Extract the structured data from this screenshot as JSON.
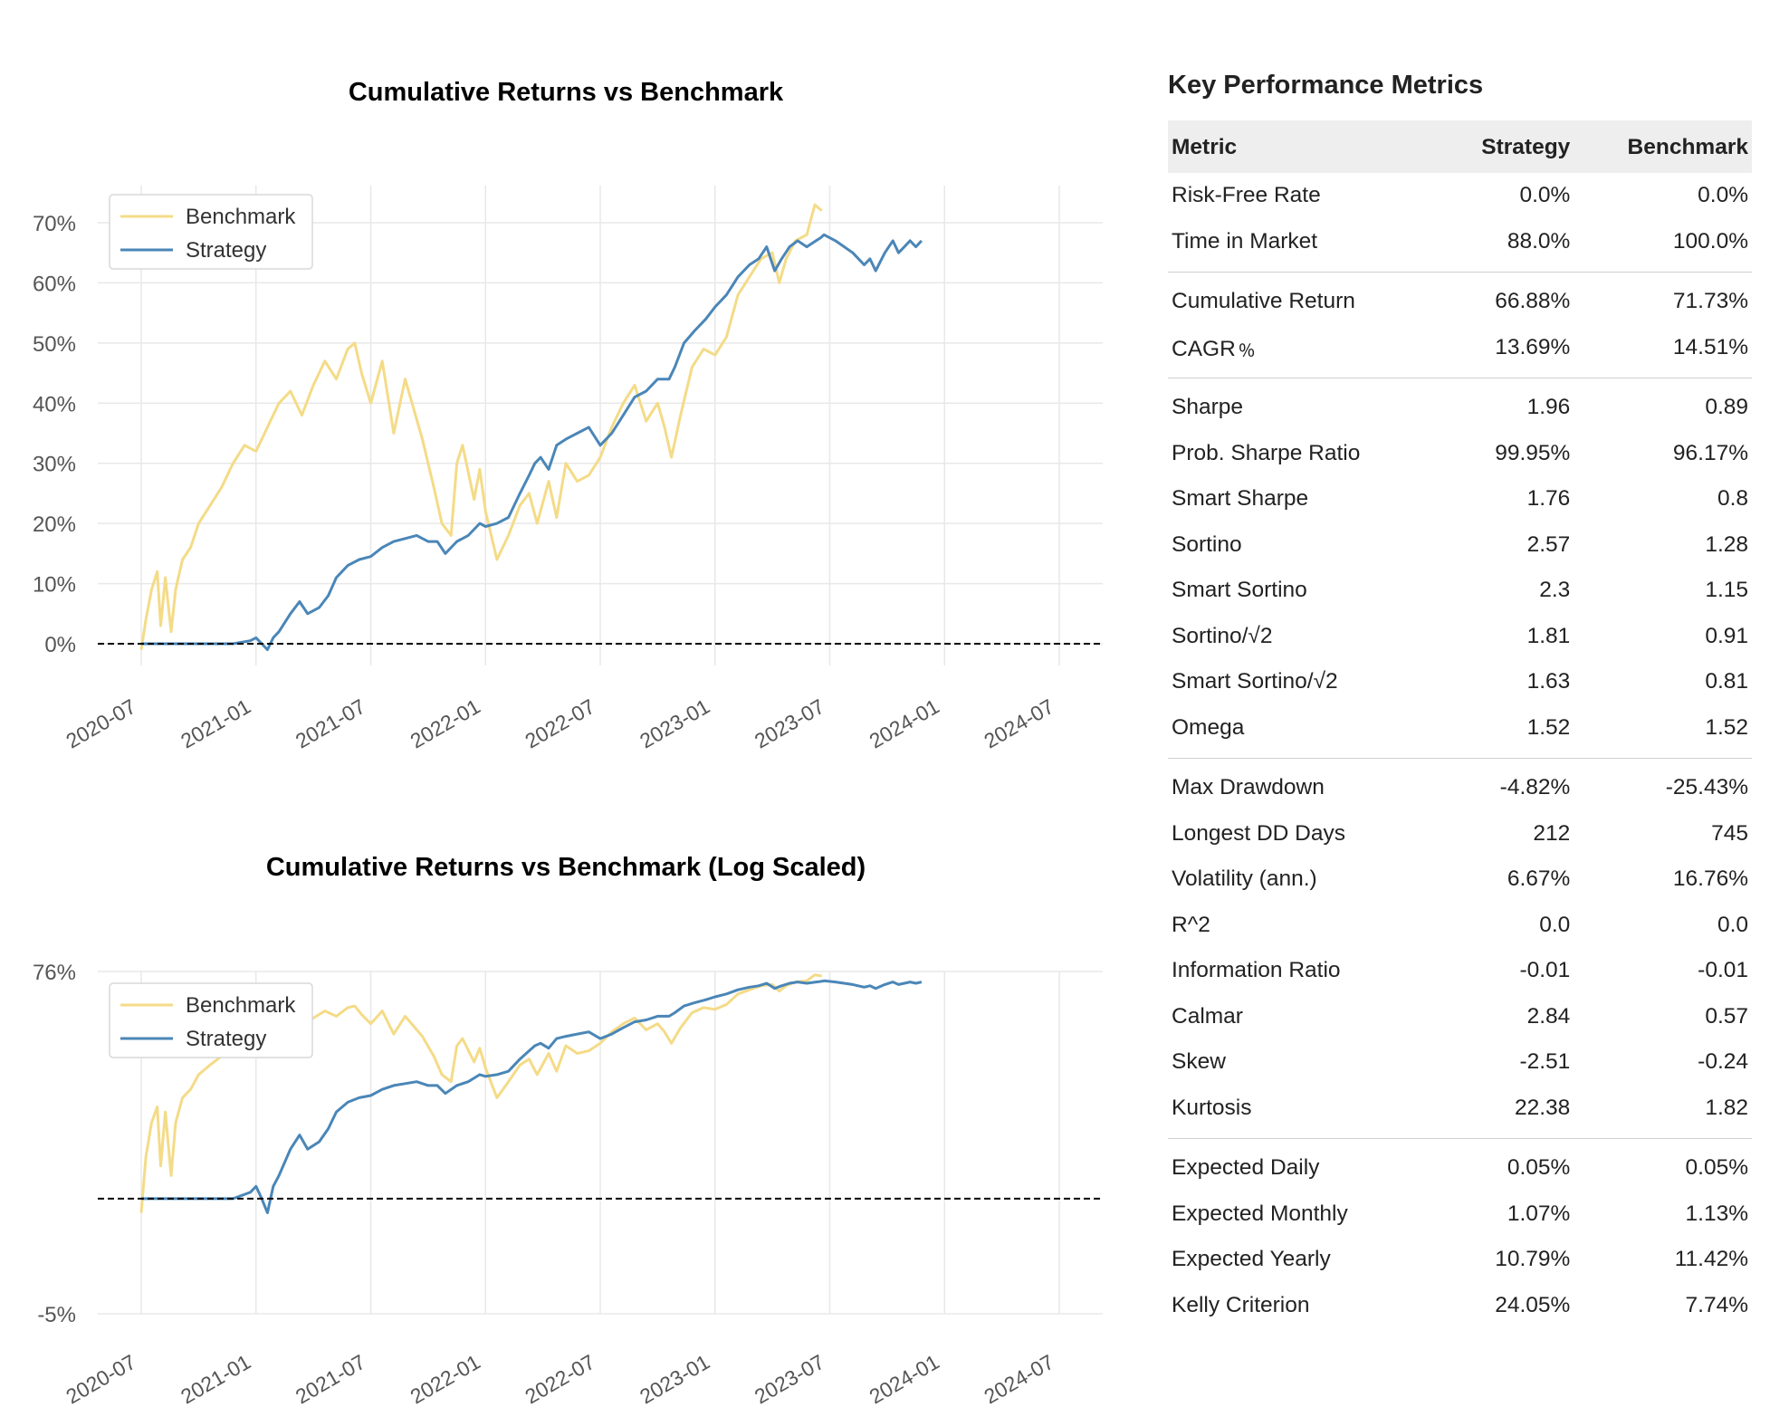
{
  "chart_data": [
    {
      "type": "line",
      "title": "Cumulative Returns vs Benchmark",
      "yscale": "linear",
      "ylim": [
        -5,
        77
      ],
      "y_ticks": [
        "70%",
        "60%",
        "50%",
        "40%",
        "30%",
        "20%",
        "10%",
        "0%"
      ],
      "y_tick_values": [
        70,
        60,
        50,
        40,
        30,
        20,
        10,
        0
      ],
      "x_ticks": [
        "2020-07",
        "2021-01",
        "2021-07",
        "2022-01",
        "2022-07",
        "2023-01",
        "2023-07",
        "2024-01",
        "2024-07"
      ],
      "x_range": [
        "2020-07",
        "2024-07"
      ],
      "baseline": 0,
      "legend": {
        "position": "top-left",
        "entries": [
          "Benchmark",
          "Strategy"
        ]
      },
      "grid": true,
      "series": [
        {
          "name": "Benchmark",
          "color": "#f4db87",
          "points": [
            [
              0.0,
              -1
            ],
            [
              0.04,
              4
            ],
            [
              0.09,
              9
            ],
            [
              0.14,
              12
            ],
            [
              0.17,
              3
            ],
            [
              0.21,
              11
            ],
            [
              0.26,
              2
            ],
            [
              0.3,
              9
            ],
            [
              0.36,
              14
            ],
            [
              0.43,
              16
            ],
            [
              0.5,
              20
            ],
            [
              0.6,
              23
            ],
            [
              0.7,
              26
            ],
            [
              0.8,
              30
            ],
            [
              0.9,
              33
            ],
            [
              1.0,
              32
            ],
            [
              1.1,
              36
            ],
            [
              1.2,
              40
            ],
            [
              1.3,
              42
            ],
            [
              1.4,
              38
            ],
            [
              1.5,
              43
            ],
            [
              1.6,
              47
            ],
            [
              1.7,
              44
            ],
            [
              1.8,
              49
            ],
            [
              1.86,
              50
            ],
            [
              1.92,
              45
            ],
            [
              2.0,
              40
            ],
            [
              2.1,
              47
            ],
            [
              2.2,
              35
            ],
            [
              2.3,
              44
            ],
            [
              2.45,
              34
            ],
            [
              2.55,
              26
            ],
            [
              2.62,
              20
            ],
            [
              2.7,
              18
            ],
            [
              2.75,
              30
            ],
            [
              2.8,
              33
            ],
            [
              2.9,
              24
            ],
            [
              2.95,
              29
            ],
            [
              3.0,
              22
            ],
            [
              3.1,
              14
            ],
            [
              3.2,
              18
            ],
            [
              3.3,
              23
            ],
            [
              3.38,
              25
            ],
            [
              3.45,
              20
            ],
            [
              3.55,
              27
            ],
            [
              3.62,
              21
            ],
            [
              3.7,
              30
            ],
            [
              3.8,
              27
            ],
            [
              3.9,
              28
            ],
            [
              4.0,
              31
            ],
            [
              4.1,
              36
            ],
            [
              4.2,
              40
            ],
            [
              4.3,
              43
            ],
            [
              4.4,
              37
            ],
            [
              4.5,
              40
            ],
            [
              4.56,
              36
            ],
            [
              4.62,
              31
            ],
            [
              4.7,
              38
            ],
            [
              4.8,
              46
            ],
            [
              4.9,
              49
            ],
            [
              5.0,
              48
            ],
            [
              5.1,
              51
            ],
            [
              5.2,
              58
            ],
            [
              5.3,
              61
            ],
            [
              5.4,
              64
            ],
            [
              5.5,
              65
            ],
            [
              5.56,
              60
            ],
            [
              5.62,
              64
            ],
            [
              5.7,
              67
            ],
            [
              5.8,
              68
            ],
            [
              5.87,
              73
            ],
            [
              5.93,
              72
            ]
          ]
        },
        {
          "name": "Strategy",
          "color": "#4a86b7",
          "points": [
            [
              0.0,
              0
            ],
            [
              0.2,
              0
            ],
            [
              0.5,
              0
            ],
            [
              0.8,
              0
            ],
            [
              0.95,
              0.5
            ],
            [
              1.0,
              1
            ],
            [
              1.05,
              0
            ],
            [
              1.1,
              -1
            ],
            [
              1.15,
              1
            ],
            [
              1.2,
              2
            ],
            [
              1.3,
              5
            ],
            [
              1.38,
              7
            ],
            [
              1.45,
              5
            ],
            [
              1.55,
              6
            ],
            [
              1.63,
              8
            ],
            [
              1.7,
              11
            ],
            [
              1.8,
              13
            ],
            [
              1.9,
              14
            ],
            [
              2.0,
              14.5
            ],
            [
              2.1,
              16
            ],
            [
              2.2,
              17
            ],
            [
              2.3,
              17.5
            ],
            [
              2.4,
              18
            ],
            [
              2.5,
              17
            ],
            [
              2.58,
              17
            ],
            [
              2.65,
              15
            ],
            [
              2.75,
              17
            ],
            [
              2.85,
              18
            ],
            [
              2.95,
              20
            ],
            [
              3.0,
              19.5
            ],
            [
              3.1,
              20
            ],
            [
              3.2,
              21
            ],
            [
              3.3,
              25
            ],
            [
              3.38,
              28
            ],
            [
              3.43,
              30
            ],
            [
              3.48,
              31
            ],
            [
              3.55,
              29
            ],
            [
              3.62,
              33
            ],
            [
              3.7,
              34
            ],
            [
              3.8,
              35
            ],
            [
              3.9,
              36
            ],
            [
              4.0,
              33
            ],
            [
              4.1,
              35
            ],
            [
              4.2,
              38
            ],
            [
              4.3,
              41
            ],
            [
              4.4,
              42
            ],
            [
              4.5,
              44
            ],
            [
              4.6,
              44
            ],
            [
              4.65,
              46
            ],
            [
              4.73,
              50
            ],
            [
              4.82,
              52
            ],
            [
              4.92,
              54
            ],
            [
              5.0,
              56
            ],
            [
              5.1,
              58
            ],
            [
              5.2,
              61
            ],
            [
              5.3,
              63
            ],
            [
              5.38,
              64
            ],
            [
              5.45,
              66
            ],
            [
              5.52,
              62
            ],
            [
              5.58,
              64
            ],
            [
              5.65,
              66
            ],
            [
              5.72,
              67
            ],
            [
              5.8,
              66
            ],
            [
              5.88,
              67
            ],
            [
              5.92,
              67.5
            ],
            [
              5.95,
              68
            ],
            [
              6.05,
              67
            ],
            [
              6.2,
              65
            ],
            [
              6.3,
              63
            ],
            [
              6.35,
              64
            ],
            [
              6.4,
              62
            ],
            [
              6.48,
              65
            ],
            [
              6.55,
              67
            ],
            [
              6.6,
              65
            ],
            [
              6.65,
              66
            ],
            [
              6.7,
              67
            ],
            [
              6.75,
              66
            ],
            [
              6.8,
              67
            ]
          ]
        }
      ]
    },
    {
      "type": "line",
      "title": "Cumulative Returns vs Benchmark (Log Scaled)",
      "yscale": "log",
      "y_ticks": [
        "76%",
        "-5%"
      ],
      "x_ticks": [
        "2020-07",
        "2021-01",
        "2021-07",
        "2022-01",
        "2022-07",
        "2023-01",
        "2023-07",
        "2024-01",
        "2024-07"
      ],
      "x_range": [
        "2020-07",
        "2024-07"
      ],
      "baseline": 0,
      "legend": {
        "position": "top-left",
        "entries": [
          "Benchmark",
          "Strategy"
        ]
      },
      "grid": true,
      "series_ref": "same data as chart 1, plotted on log scale"
    }
  ],
  "metrics": {
    "title": "Key Performance Metrics",
    "headers": [
      "Metric",
      "Strategy",
      "Benchmark"
    ],
    "groups": [
      [
        {
          "metric": "Risk-Free Rate",
          "strategy": "0.0%",
          "benchmark": "0.0%"
        },
        {
          "metric": "Time in Market",
          "strategy": "88.0%",
          "benchmark": "100.0%"
        }
      ],
      [
        {
          "metric": "Cumulative Return",
          "strategy": "66.88%",
          "benchmark": "71.73%"
        },
        {
          "metric": "CAGR﹪",
          "strategy": "13.69%",
          "benchmark": "14.51%"
        }
      ],
      [
        {
          "metric": "Sharpe",
          "strategy": "1.96",
          "benchmark": "0.89"
        },
        {
          "metric": "Prob. Sharpe Ratio",
          "strategy": "99.95%",
          "benchmark": "96.17%"
        },
        {
          "metric": "Smart Sharpe",
          "strategy": "1.76",
          "benchmark": "0.8"
        },
        {
          "metric": "Sortino",
          "strategy": "2.57",
          "benchmark": "1.28"
        },
        {
          "metric": "Smart Sortino",
          "strategy": "2.3",
          "benchmark": "1.15"
        },
        {
          "metric": "Sortino/√2",
          "strategy": "1.81",
          "benchmark": "0.91"
        },
        {
          "metric": "Smart Sortino/√2",
          "strategy": "1.63",
          "benchmark": "0.81"
        },
        {
          "metric": "Omega",
          "strategy": "1.52",
          "benchmark": "1.52"
        }
      ],
      [
        {
          "metric": "Max Drawdown",
          "strategy": "-4.82%",
          "benchmark": "-25.43%"
        },
        {
          "metric": "Longest DD Days",
          "strategy": "212",
          "benchmark": "745"
        },
        {
          "metric": "Volatility (ann.)",
          "strategy": "6.67%",
          "benchmark": "16.76%"
        },
        {
          "metric": "R^2",
          "strategy": "0.0",
          "benchmark": "0.0"
        },
        {
          "metric": "Information Ratio",
          "strategy": "-0.01",
          "benchmark": "-0.01"
        },
        {
          "metric": "Calmar",
          "strategy": "2.84",
          "benchmark": "0.57"
        },
        {
          "metric": "Skew",
          "strategy": "-2.51",
          "benchmark": "-0.24"
        },
        {
          "metric": "Kurtosis",
          "strategy": "22.38",
          "benchmark": "1.82"
        }
      ],
      [
        {
          "metric": "Expected Daily",
          "strategy": "0.05%",
          "benchmark": "0.05%"
        },
        {
          "metric": "Expected Monthly",
          "strategy": "1.07%",
          "benchmark": "1.13%"
        },
        {
          "metric": "Expected Yearly",
          "strategy": "10.79%",
          "benchmark": "11.42%"
        },
        {
          "metric": "Kelly Criterion",
          "strategy": "24.05%",
          "benchmark": "7.74%"
        }
      ]
    ]
  }
}
